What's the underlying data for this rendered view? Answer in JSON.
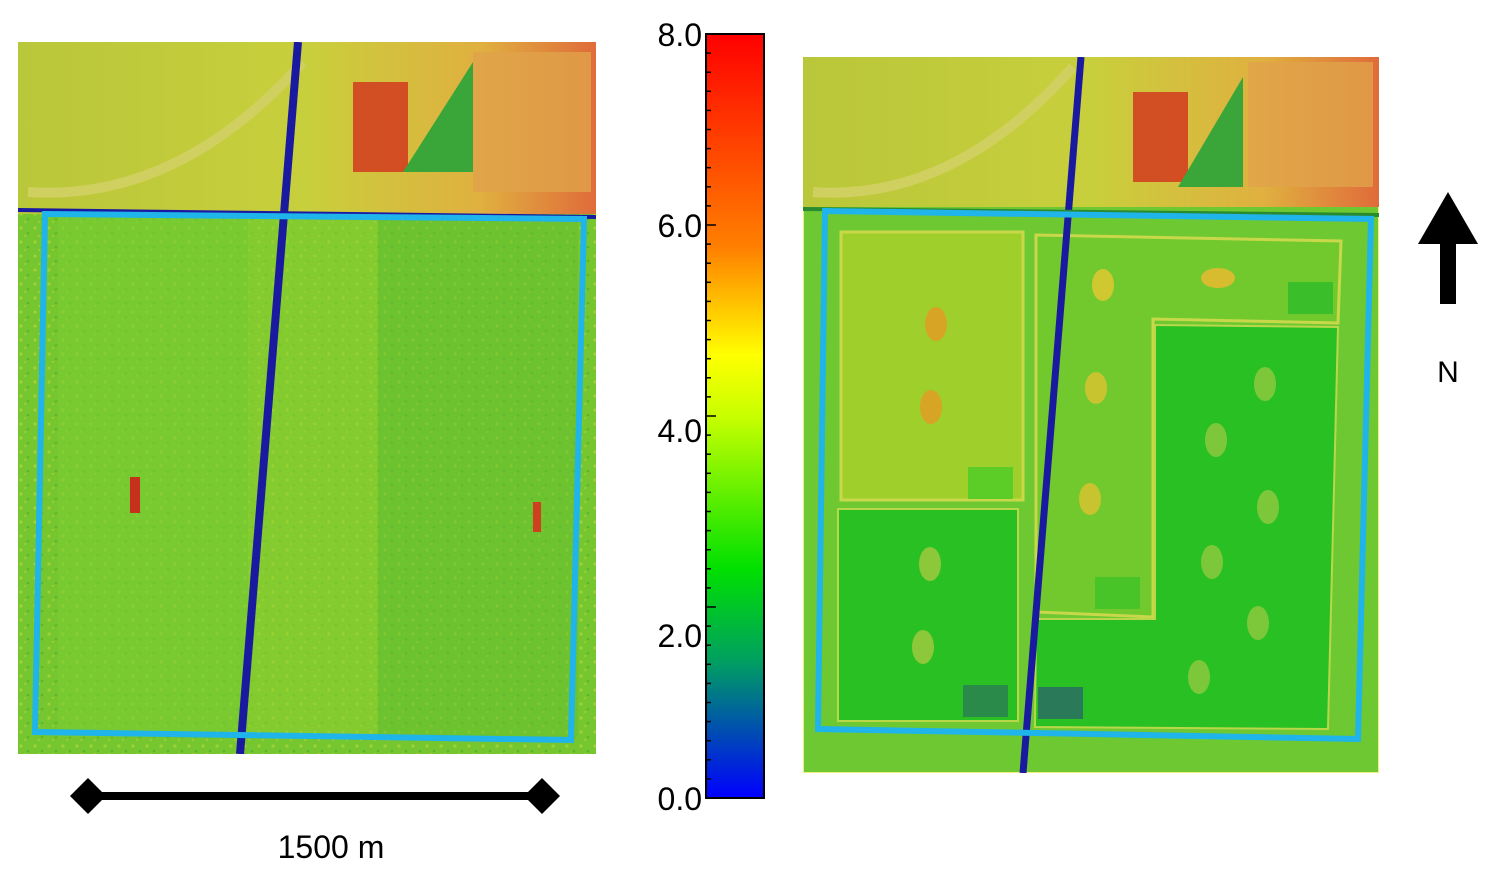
{
  "colorbar": {
    "ticks": [
      "8.0",
      "6.0",
      "4.0",
      "2.0",
      "0.0"
    ],
    "stops": [
      "#0000ff",
      "#00a060",
      "#00e000",
      "#a0ff00",
      "#ffff00",
      "#ff8000",
      "#ff0000"
    ]
  },
  "scalebar": {
    "label": "1500 m"
  },
  "north_arrow": {
    "label": "N"
  },
  "colors": {
    "field_outline": "#1fb4ea",
    "canal": "#1a1aa0",
    "field_green": "#6ec832",
    "field_yellow_green": "#9fcf2a",
    "plot_green": "#28c023"
  }
}
